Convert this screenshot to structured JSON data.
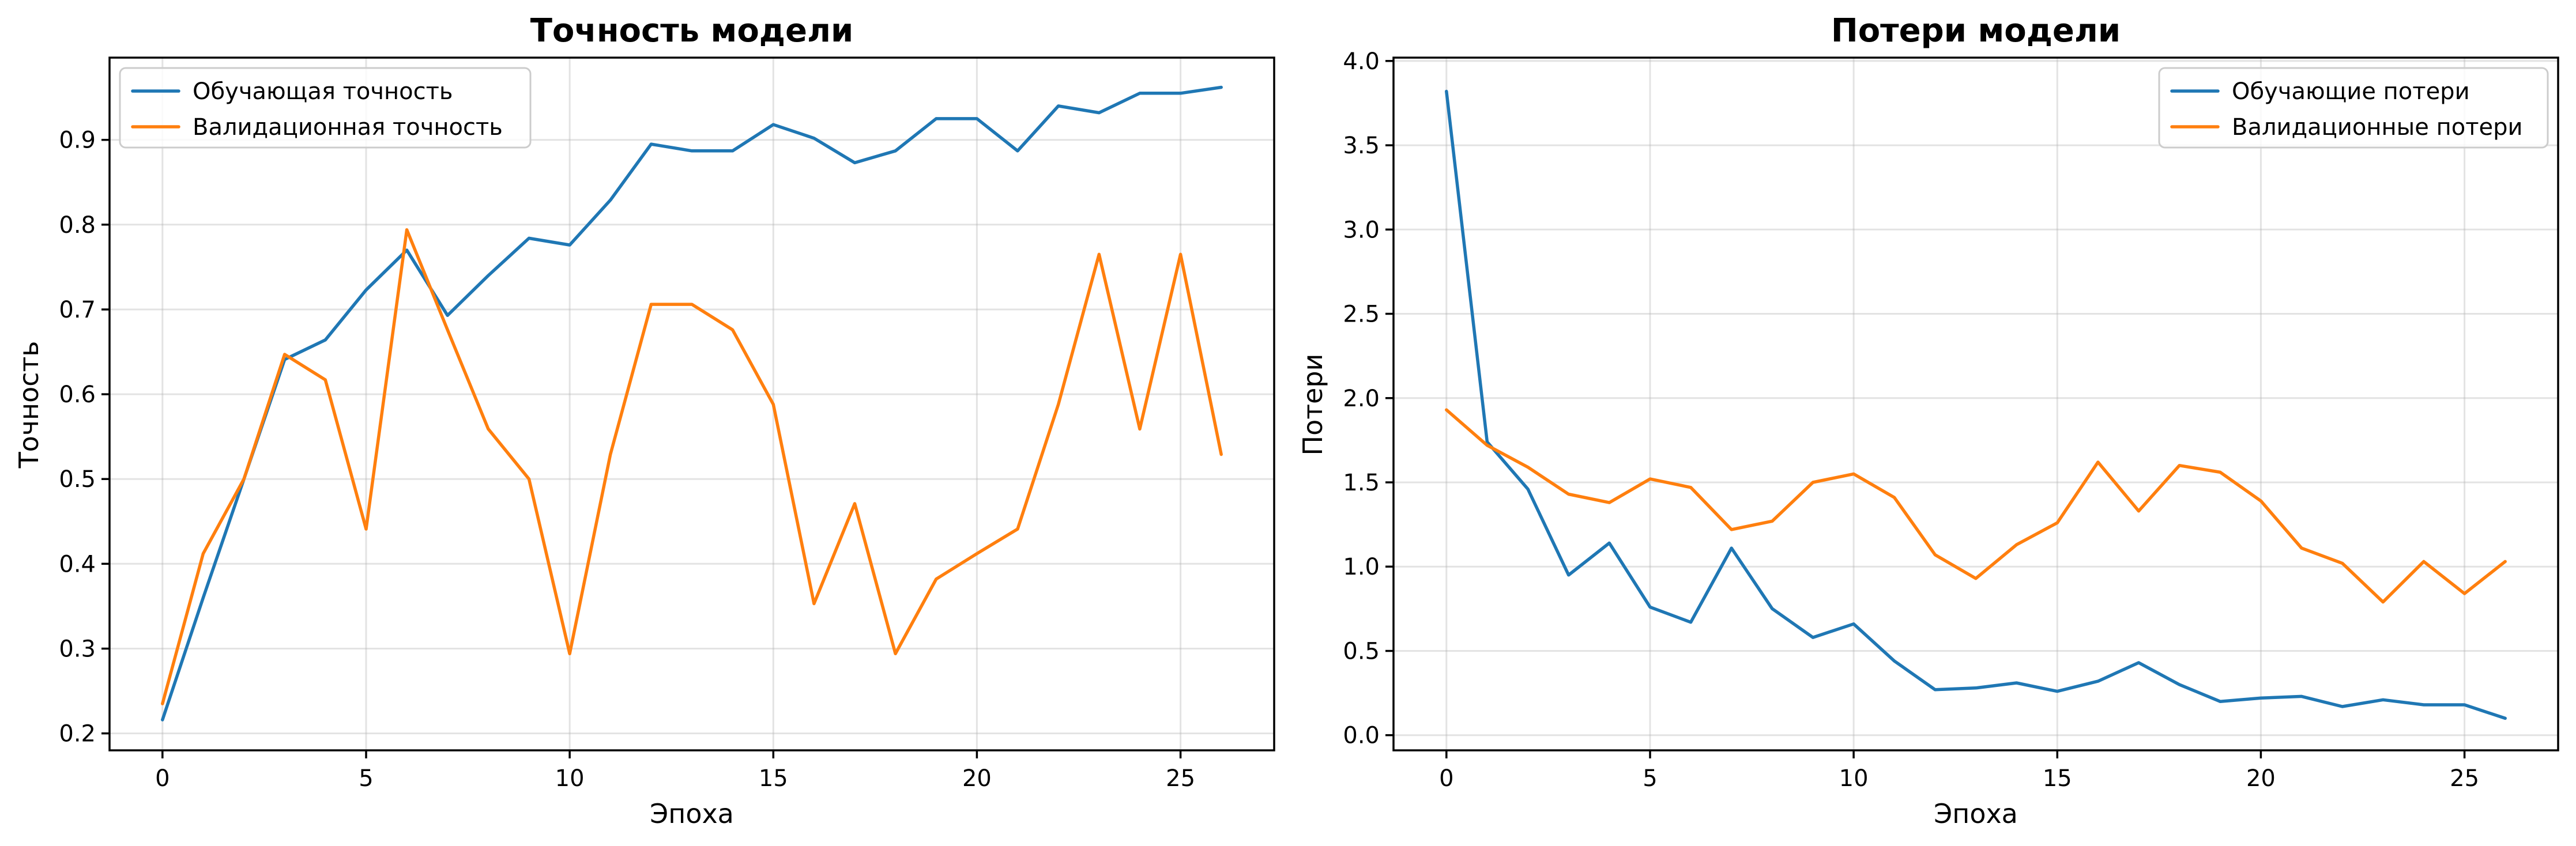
{
  "chart_data": [
    {
      "type": "line",
      "title": "Точность модели",
      "xlabel": "Эпоха",
      "ylabel": "Точность",
      "xlim": [
        -1.3,
        27.3
      ],
      "ylim": [
        0.18,
        0.997
      ],
      "xticks": [
        0,
        5,
        10,
        15,
        20,
        25
      ],
      "yticks": [
        0.2,
        0.3,
        0.4,
        0.5,
        0.6,
        0.7,
        0.8,
        0.9
      ],
      "ytick_labels": [
        "0.2",
        "0.3",
        "0.4",
        "0.5",
        "0.6",
        "0.7",
        "0.8",
        "0.9"
      ],
      "grid": true,
      "legend": "upper-left",
      "x": [
        0,
        1,
        2,
        3,
        4,
        5,
        6,
        7,
        8,
        9,
        10,
        11,
        12,
        13,
        14,
        15,
        16,
        17,
        18,
        19,
        20,
        21,
        22,
        23,
        24,
        25,
        26
      ],
      "series": [
        {
          "name": "Обучающая точность",
          "color": "#1f77b4",
          "values": [
            0.216,
            0.36,
            0.5,
            0.641,
            0.664,
            0.723,
            0.77,
            0.693,
            0.74,
            0.784,
            0.776,
            0.829,
            0.895,
            0.887,
            0.887,
            0.918,
            0.902,
            0.873,
            0.887,
            0.925,
            0.925,
            0.887,
            0.94,
            0.932,
            0.955,
            0.955,
            0.962
          ]
        },
        {
          "name": "Валидационная точность",
          "color": "#ff7f0e",
          "values": [
            0.235,
            0.412,
            0.5,
            0.647,
            0.617,
            0.441,
            0.794,
            0.676,
            0.559,
            0.5,
            0.294,
            0.529,
            0.706,
            0.706,
            0.676,
            0.588,
            0.353,
            0.471,
            0.294,
            0.382,
            0.412,
            0.441,
            0.588,
            0.765,
            0.559,
            0.765,
            0.529
          ]
        }
      ]
    },
    {
      "type": "line",
      "title": "Потери модели",
      "xlabel": "Эпоха",
      "ylabel": "Потери",
      "xlim": [
        -1.3,
        27.3
      ],
      "ylim": [
        -0.09,
        4.02
      ],
      "xticks": [
        0,
        5,
        10,
        15,
        20,
        25
      ],
      "yticks": [
        0.0,
        0.5,
        1.0,
        1.5,
        2.0,
        2.5,
        3.0,
        3.5,
        4.0
      ],
      "ytick_labels": [
        "0.0",
        "0.5",
        "1.0",
        "1.5",
        "2.0",
        "2.5",
        "3.0",
        "3.5",
        "4.0"
      ],
      "grid": true,
      "legend": "upper-right",
      "x": [
        0,
        1,
        2,
        3,
        4,
        5,
        6,
        7,
        8,
        9,
        10,
        11,
        12,
        13,
        14,
        15,
        16,
        17,
        18,
        19,
        20,
        21,
        22,
        23,
        24,
        25,
        26
      ],
      "series": [
        {
          "name": "Обучающие потери",
          "color": "#1f77b4",
          "values": [
            3.82,
            1.74,
            1.46,
            0.95,
            1.14,
            0.76,
            0.67,
            1.11,
            0.75,
            0.58,
            0.66,
            0.44,
            0.27,
            0.28,
            0.31,
            0.26,
            0.32,
            0.43,
            0.3,
            0.2,
            0.22,
            0.23,
            0.17,
            0.21,
            0.18,
            0.18,
            0.1
          ]
        },
        {
          "name": "Валидационные потери",
          "color": "#ff7f0e",
          "values": [
            1.93,
            1.72,
            1.59,
            1.43,
            1.38,
            1.52,
            1.47,
            1.22,
            1.27,
            1.5,
            1.55,
            1.41,
            1.07,
            0.93,
            1.13,
            1.26,
            1.62,
            1.33,
            1.6,
            1.56,
            1.39,
            1.11,
            1.02,
            0.79,
            1.03,
            0.84,
            1.03
          ]
        }
      ]
    }
  ]
}
